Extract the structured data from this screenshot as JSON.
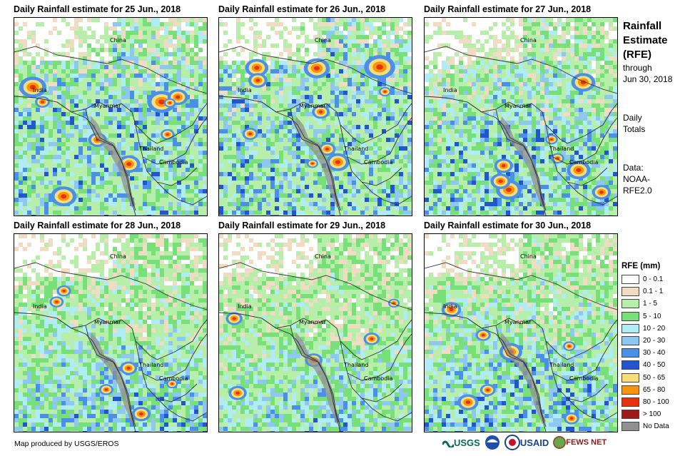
{
  "panels": [
    {
      "title": "Daily Rainfall estimate for 25 Jun., 2018",
      "intensity": 0.85,
      "seed": 25
    },
    {
      "title": "Daily Rainfall estimate for 26 Jun., 2018",
      "intensity": 1.0,
      "seed": 26
    },
    {
      "title": "Daily Rainfall estimate for 27 Jun., 2018",
      "intensity": 0.7,
      "seed": 27
    },
    {
      "title": "Daily Rainfall estimate for 28 Jun., 2018",
      "intensity": 0.45,
      "seed": 28
    },
    {
      "title": "Daily Rainfall estimate for 29 Jun., 2018",
      "intensity": 0.35,
      "seed": 29
    },
    {
      "title": "Daily Rainfall estimate for 30 Jun., 2018",
      "intensity": 0.55,
      "seed": 30
    }
  ],
  "map_labels": {
    "china": "China",
    "india": "India",
    "myanmar": "Myanmar",
    "thailand": "Thailand",
    "cambodia": "Cambodia"
  },
  "side": {
    "title_line1": "Rainfall",
    "title_line2": "Estimate",
    "title_line3": "(RFE)",
    "through": "through",
    "through_date": "Jun 30, 2018",
    "daily": "Daily",
    "totals": "Totals",
    "data_label": "Data:",
    "data_source1": "NOAA-",
    "data_source2": "RFE2.0"
  },
  "legend": {
    "title": "RFE (mm)",
    "items": [
      {
        "label": "0 - 0.1",
        "color": "#ffffff"
      },
      {
        "label": "0.1 - 1",
        "color": "#efdcc2"
      },
      {
        "label": "1 - 5",
        "color": "#b7efaa"
      },
      {
        "label": "5 - 10",
        "color": "#78e078"
      },
      {
        "label": "10 - 20",
        "color": "#b0ecf4"
      },
      {
        "label": "20 - 30",
        "color": "#8ec8f2"
      },
      {
        "label": "30 - 40",
        "color": "#4a90e8"
      },
      {
        "label": "40 - 50",
        "color": "#2255d0"
      },
      {
        "label": "50 - 65",
        "color": "#f8de7a"
      },
      {
        "label": "65 - 80",
        "color": "#f6940c"
      },
      {
        "label": "80 - 100",
        "color": "#e8300c"
      },
      {
        "label": "> 100",
        "color": "#a01818"
      },
      {
        "label": "No Data",
        "color": "#909090"
      }
    ]
  },
  "footer": {
    "credit": "Map produced by USGS/EROS"
  },
  "logos": {
    "usgs": "USGS",
    "usaid": "USAID",
    "fewsnet": "FEWS NET"
  }
}
